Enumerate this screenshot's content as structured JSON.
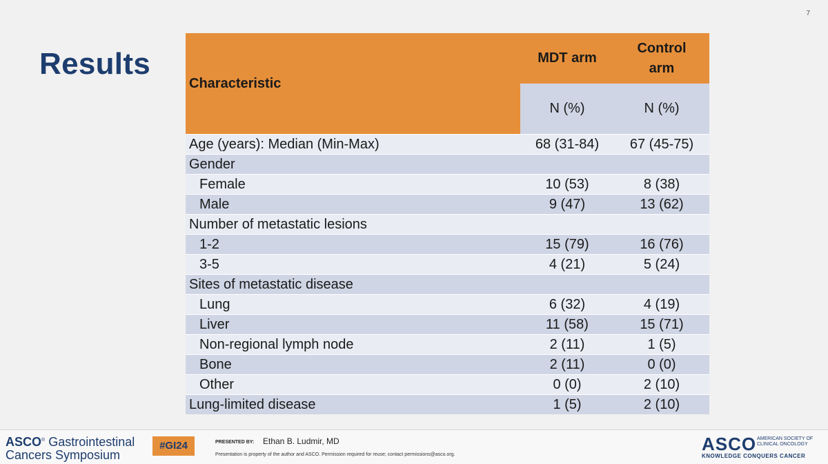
{
  "slide": {
    "number": "7",
    "title": "Results"
  },
  "table": {
    "header": {
      "characteristic": "Characteristic",
      "mdt_arm": "MDT arm",
      "control_arm": "Control arm",
      "mdt_unit": "N (%)",
      "control_unit": "N (%)"
    },
    "rows": [
      {
        "label": "Age (years): Median (Min-Max)",
        "mdt": "68 (31-84)",
        "control": "67 (45-75)",
        "indent": false
      },
      {
        "label": "Gender",
        "mdt": "",
        "control": "",
        "indent": false
      },
      {
        "label": "Female",
        "mdt": "10 (53)",
        "control": "8 (38)",
        "indent": true
      },
      {
        "label": "Male",
        "mdt": "9 (47)",
        "control": "13 (62)",
        "indent": true
      },
      {
        "label": "Number of metastatic lesions",
        "mdt": "",
        "control": "",
        "indent": false
      },
      {
        "label": "1-2",
        "mdt": "15 (79)",
        "control": "16 (76)",
        "indent": true
      },
      {
        "label": "3-5",
        "mdt": "4 (21)",
        "control": "5 (24)",
        "indent": true
      },
      {
        "label": "Sites of metastatic disease",
        "mdt": "",
        "control": "",
        "indent": false
      },
      {
        "label": "Lung",
        "mdt": "6 (32)",
        "control": "4 (19)",
        "indent": true
      },
      {
        "label": "Liver",
        "mdt": "11 (58)",
        "control": "15 (71)",
        "indent": true
      },
      {
        "label": "Non-regional lymph node",
        "mdt": "2 (11)",
        "control": "1 (5)",
        "indent": true
      },
      {
        "label": "Bone",
        "mdt": "2 (11)",
        "control": "0 (0)",
        "indent": true
      },
      {
        "label": "Other",
        "mdt": "0 (0)",
        "control": "2 (10)",
        "indent": true
      },
      {
        "label": "Lung-limited disease",
        "mdt": "1 (5)",
        "control": "2 (10)",
        "indent": false
      }
    ]
  },
  "footer": {
    "asco_brand": "ASCO",
    "symposium_line1": "Gastrointestinal",
    "symposium_line2": "Cancers Symposium",
    "hashtag": "#GI24",
    "presented_by_label": "PRESENTED BY:",
    "presenter": "Ethan B. Ludmir, MD",
    "disclaimer": "Presentation is property of the author and ASCO. Permission required for reuse; contact permissions@asco.org.",
    "asco_logo": "ASCO",
    "society_name": "AMERICAN SOCIETY OF CLINICAL ONCOLOGY",
    "tagline": "KNOWLEDGE CONQUERS CANCER"
  },
  "colors": {
    "orange": "#e68f3a",
    "navy": "#1d3d6e",
    "row_light": "#e9ecf3",
    "row_dark": "#cfd5e4"
  }
}
